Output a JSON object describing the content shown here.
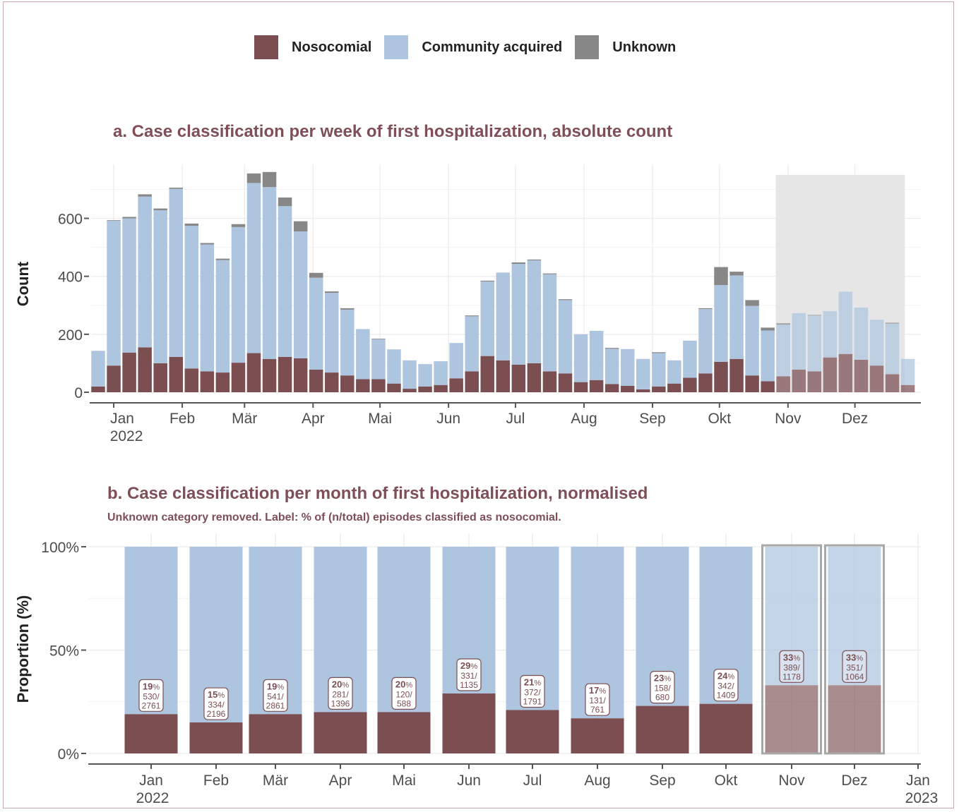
{
  "legend": [
    {
      "label": "Nosocomial",
      "color": "#7b4e52"
    },
    {
      "label": "Community acquired",
      "color": "#aec5df"
    },
    {
      "label": "Unknown",
      "color": "#878787"
    }
  ],
  "colors": {
    "nosocomial": "#7b4e52",
    "community": "#aec5df",
    "unknown": "#878787",
    "title": "#7e4f56",
    "shade": "#e6e6e6",
    "grid": "#ececec"
  },
  "chart_data": [
    {
      "type": "bar",
      "stacked": true,
      "title": "a. Case classification per week of first hospitalization, absolute count",
      "ylabel": "Count",
      "xlabel": "",
      "ylim": [
        0,
        760
      ],
      "yticks": [
        0,
        200,
        400,
        600
      ],
      "x_tick_labels": [
        {
          "label": "Jan",
          "sub": "2022",
          "week": 1
        },
        {
          "label": "Feb",
          "week": 5.4
        },
        {
          "label": "Mär",
          "week": 9.4
        },
        {
          "label": "Apr",
          "week": 13.8
        },
        {
          "label": "Mai",
          "week": 18.1
        },
        {
          "label": "Jun",
          "week": 22.5
        },
        {
          "label": "Jul",
          "week": 26.8
        },
        {
          "label": "Aug",
          "week": 31.2
        },
        {
          "label": "Sep",
          "week": 35.6
        },
        {
          "label": "Okt",
          "week": 39.9
        },
        {
          "label": "Nov",
          "week": 44.3
        },
        {
          "label": "Dez",
          "week": 48.6
        }
      ],
      "shaded_weeks_from": 44,
      "weeks": [
        0,
        1,
        2,
        3,
        4,
        5,
        6,
        7,
        8,
        9,
        10,
        11,
        12,
        13,
        14,
        15,
        16,
        17,
        18,
        19,
        20,
        21,
        22,
        23,
        24,
        25,
        26,
        27,
        28,
        29,
        30,
        31,
        32,
        33,
        34,
        35,
        36,
        37,
        38,
        39,
        40,
        41,
        42,
        43,
        44,
        45,
        46,
        47,
        48,
        49,
        50,
        51,
        52
      ],
      "series": [
        {
          "name": "Nosocomial",
          "values": [
            20,
            92,
            137,
            155,
            100,
            122,
            82,
            72,
            68,
            102,
            135,
            115,
            122,
            117,
            78,
            68,
            58,
            45,
            45,
            30,
            12,
            20,
            25,
            48,
            72,
            125,
            110,
            95,
            100,
            72,
            65,
            35,
            42,
            28,
            22,
            10,
            20,
            30,
            50,
            65,
            105,
            115,
            58,
            38,
            55,
            78,
            72,
            120,
            132,
            112,
            92,
            62,
            25
          ]
        },
        {
          "name": "Community acquired",
          "values": [
            123,
            500,
            463,
            520,
            528,
            580,
            492,
            438,
            388,
            468,
            587,
            593,
            520,
            438,
            317,
            275,
            227,
            173,
            138,
            118,
            98,
            77,
            82,
            122,
            190,
            257,
            303,
            348,
            355,
            335,
            253,
            165,
            170,
            122,
            127,
            105,
            115,
            80,
            128,
            222,
            265,
            288,
            240,
            175,
            178,
            195,
            193,
            160,
            215,
            180,
            158,
            175,
            90
          ]
        },
        {
          "name": "Unknown",
          "values": [
            0,
            2,
            5,
            8,
            6,
            4,
            8,
            5,
            5,
            10,
            33,
            52,
            30,
            35,
            17,
            5,
            5,
            0,
            2,
            0,
            0,
            0,
            0,
            0,
            3,
            3,
            0,
            5,
            3,
            3,
            3,
            0,
            0,
            3,
            0,
            0,
            3,
            0,
            0,
            3,
            62,
            13,
            20,
            10,
            5,
            0,
            2,
            0,
            0,
            0,
            0,
            3,
            0
          ]
        }
      ]
    },
    {
      "type": "bar",
      "stacked": true,
      "normalised": true,
      "title": "b. Case classification per month of first hospitalization, normalised",
      "subtitle": "Unknown category removed. Label: % of (n/total) episodes classified as nosocomial.",
      "ylabel": "Proportion (%)",
      "xlabel": "",
      "ylim": [
        0,
        100
      ],
      "yticks": [
        {
          "v": 0,
          "label": "0%"
        },
        {
          "v": 50,
          "label": "50%"
        },
        {
          "v": 100,
          "label": "100%"
        }
      ],
      "categories": [
        "Jan",
        "Feb",
        "Mär",
        "Apr",
        "Mai",
        "Jun",
        "Jul",
        "Aug",
        "Sep",
        "Okt",
        "Nov",
        "Dez"
      ],
      "x_tick_labels": [
        {
          "label": "Jan",
          "sub": "2022"
        },
        {
          "label": "Feb"
        },
        {
          "label": "Mär"
        },
        {
          "label": "Apr"
        },
        {
          "label": "Mai"
        },
        {
          "label": "Jun"
        },
        {
          "label": "Jul"
        },
        {
          "label": "Aug"
        },
        {
          "label": "Sep"
        },
        {
          "label": "Okt"
        },
        {
          "label": "Nov"
        },
        {
          "label": "Dez"
        },
        {
          "label": "Jan",
          "sub": "2023"
        }
      ],
      "highlighted_categories": [
        "Nov",
        "Dez"
      ],
      "series": [
        {
          "name": "Nosocomial",
          "values": [
            19,
            15,
            19,
            20,
            20,
            29,
            21,
            17,
            23,
            24,
            33,
            33
          ]
        },
        {
          "name": "Community acquired",
          "values": [
            81,
            85,
            81,
            80,
            80,
            71,
            79,
            83,
            77,
            76,
            67,
            67
          ]
        }
      ],
      "labels": [
        {
          "pct": "19",
          "n": "530/",
          "total": "2761"
        },
        {
          "pct": "15",
          "n": "334/",
          "total": "2196"
        },
        {
          "pct": "19",
          "n": "541/",
          "total": "2861"
        },
        {
          "pct": "20",
          "n": "281/",
          "total": "1396"
        },
        {
          "pct": "20",
          "n": "120/",
          "total": "588"
        },
        {
          "pct": "29",
          "n": "331/",
          "total": "1135"
        },
        {
          "pct": "21",
          "n": "372/",
          "total": "1791"
        },
        {
          "pct": "17",
          "n": "131/",
          "total": "761"
        },
        {
          "pct": "23",
          "n": "158/",
          "total": "680"
        },
        {
          "pct": "24",
          "n": "342/",
          "total": "1409"
        },
        {
          "pct": "33",
          "n": "389/",
          "total": "1178"
        },
        {
          "pct": "33",
          "n": "351/",
          "total": "1064"
        }
      ]
    }
  ]
}
